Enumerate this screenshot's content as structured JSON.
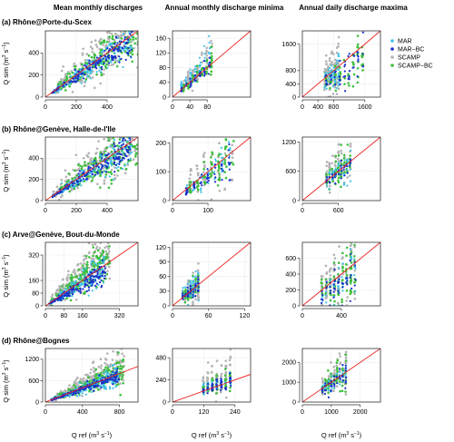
{
  "column_titles": [
    "Mean monthly discharges",
    "Annual monthly discharge minima",
    "Annual daily discharge maxima"
  ],
  "legend": [
    {
      "label": "MAR",
      "color": "#3fc1e8"
    },
    {
      "label": "MAR−BC",
      "color": "#1a2fc9"
    },
    {
      "label": "SCAMP",
      "color": "#b3b3b3"
    },
    {
      "label": "SCAMP−BC",
      "color": "#3dbf3d"
    }
  ],
  "ylabel_base": "Q sim",
  "xlabel_base": "Q ref",
  "unit_main": "(m",
  "unit_sup": "3",
  "unit_mid": " s",
  "unit_sup2": "−1",
  "unit_close": ")",
  "colors": {
    "one_to_one": "#e8221f",
    "grid": "#dcdcdc"
  },
  "chart_data": [
    {
      "type": "scatter",
      "row": 0,
      "col": 0,
      "row_title": "(a) Rhône@Porte-du-Scex",
      "xlim": [
        0,
        600
      ],
      "ylim": [
        0,
        600
      ],
      "xticks": [
        0,
        200,
        400
      ],
      "yticks": [
        0,
        200,
        400
      ],
      "seed": 11,
      "kind": "mean",
      "series": [
        {
          "name": "SCAMP",
          "x_range": [
            60,
            600
          ],
          "center": 1.15,
          "spread": 0.35,
          "n": 220
        },
        {
          "name": "SCAMP−BC",
          "x_range": [
            60,
            600
          ],
          "center": 0.98,
          "spread": 0.22,
          "n": 180
        },
        {
          "name": "MAR",
          "x_range": [
            40,
            560
          ],
          "center": 0.95,
          "spread": 0.18,
          "n": 160
        },
        {
          "name": "MAR−BC",
          "x_range": [
            40,
            560
          ],
          "center": 0.92,
          "spread": 0.12,
          "n": 160
        }
      ]
    },
    {
      "type": "scatter",
      "row": 0,
      "col": 1,
      "xlim": [
        0,
        180
      ],
      "ylim": [
        0,
        180
      ],
      "xticks": [
        0,
        40,
        80
      ],
      "yticks": [
        0,
        40,
        80,
        120,
        160
      ],
      "seed": 12,
      "kind": "min",
      "series": [
        {
          "name": "SCAMP",
          "x_range": [
            20,
            95
          ],
          "center": 1.3,
          "spread": 0.3,
          "n": 70
        },
        {
          "name": "SCAMP−BC",
          "x_range": [
            20,
            95
          ],
          "center": 1.0,
          "spread": 0.2,
          "n": 60
        },
        {
          "name": "MAR",
          "x_range": [
            15,
            90
          ],
          "center": 1.4,
          "spread": 0.35,
          "n": 60
        },
        {
          "name": "MAR−BC",
          "x_range": [
            15,
            90
          ],
          "center": 0.95,
          "spread": 0.15,
          "n": 50
        }
      ]
    },
    {
      "type": "scatter",
      "row": 0,
      "col": 2,
      "xlim": [
        0,
        2000
      ],
      "ylim": [
        0,
        2000
      ],
      "xticks": [
        0,
        400,
        800,
        1600
      ],
      "yticks": [
        0,
        400,
        800,
        1600
      ],
      "seed": 13,
      "kind": "max",
      "series": [
        {
          "name": "SCAMP",
          "x_range": [
            550,
            950
          ],
          "center": 1.0,
          "spread": 0.45,
          "n": 90
        },
        {
          "name": "SCAMP−BC",
          "x_range": [
            550,
            1600
          ],
          "center": 0.75,
          "spread": 0.25,
          "n": 70
        },
        {
          "name": "MAR",
          "x_range": [
            550,
            950
          ],
          "center": 0.9,
          "spread": 0.3,
          "n": 60
        },
        {
          "name": "MAR−BC",
          "x_range": [
            550,
            1600
          ],
          "center": 0.75,
          "spread": 0.2,
          "n": 50
        }
      ]
    },
    {
      "type": "scatter",
      "row": 1,
      "col": 0,
      "row_title": "(b) Rhône@Genève, Halle-de-l'Ile",
      "xlim": [
        0,
        600
      ],
      "ylim": [
        0,
        600
      ],
      "xticks": [
        0,
        200,
        400
      ],
      "yticks": [
        0,
        200,
        400
      ],
      "seed": 21,
      "kind": "mean",
      "series": [
        {
          "name": "SCAMP",
          "x_range": [
            50,
            600
          ],
          "center": 1.15,
          "spread": 0.35,
          "n": 220
        },
        {
          "name": "SCAMP−BC",
          "x_range": [
            50,
            600
          ],
          "center": 1.0,
          "spread": 0.25,
          "n": 180
        },
        {
          "name": "MAR",
          "x_range": [
            40,
            560
          ],
          "center": 0.95,
          "spread": 0.18,
          "n": 150
        },
        {
          "name": "MAR−BC",
          "x_range": [
            40,
            560
          ],
          "center": 0.92,
          "spread": 0.12,
          "n": 160
        }
      ]
    },
    {
      "type": "scatter",
      "row": 1,
      "col": 1,
      "xlim": [
        0,
        220
      ],
      "ylim": [
        0,
        220
      ],
      "xticks": [
        0,
        100
      ],
      "yticks": [
        0,
        100,
        200
      ],
      "seed": 22,
      "kind": "min",
      "series": [
        {
          "name": "SCAMP",
          "x_range": [
            40,
            180
          ],
          "center": 1.1,
          "spread": 0.45,
          "n": 80
        },
        {
          "name": "SCAMP−BC",
          "x_range": [
            40,
            180
          ],
          "center": 0.9,
          "spread": 0.3,
          "n": 70
        },
        {
          "name": "MAR",
          "x_range": [
            30,
            170
          ],
          "center": 0.9,
          "spread": 0.2,
          "n": 50
        },
        {
          "name": "MAR−BC",
          "x_range": [
            30,
            170
          ],
          "center": 0.85,
          "spread": 0.15,
          "n": 55
        }
      ]
    },
    {
      "type": "scatter",
      "row": 1,
      "col": 2,
      "xlim": [
        0,
        1300
      ],
      "ylim": [
        0,
        1300
      ],
      "xticks": [
        0,
        600
      ],
      "yticks": [
        0,
        600,
        1200
      ],
      "seed": 23,
      "kind": "max",
      "series": [
        {
          "name": "SCAMP",
          "x_range": [
            380,
            820
          ],
          "center": 1.25,
          "spread": 0.35,
          "n": 80
        },
        {
          "name": "SCAMP−BC",
          "x_range": [
            380,
            820
          ],
          "center": 1.0,
          "spread": 0.25,
          "n": 70
        },
        {
          "name": "MAR",
          "x_range": [
            380,
            820
          ],
          "center": 1.0,
          "spread": 0.2,
          "n": 40
        },
        {
          "name": "MAR−BC",
          "x_range": [
            380,
            820
          ],
          "center": 0.95,
          "spread": 0.15,
          "n": 40
        }
      ]
    },
    {
      "type": "scatter",
      "row": 2,
      "col": 0,
      "row_title": "(c) Arve@Genève, Bout-du-Monde",
      "xlim": [
        0,
        400
      ],
      "ylim": [
        0,
        400
      ],
      "xticks": [
        0,
        80,
        160,
        320
      ],
      "yticks": [
        0,
        80,
        160,
        320
      ],
      "seed": 31,
      "kind": "mean",
      "series": [
        {
          "name": "SCAMP",
          "x_range": [
            20,
            280
          ],
          "center": 1.35,
          "spread": 0.4,
          "n": 220
        },
        {
          "name": "SCAMP−BC",
          "x_range": [
            20,
            280
          ],
          "center": 1.1,
          "spread": 0.3,
          "n": 190
        },
        {
          "name": "MAR",
          "x_range": [
            15,
            260
          ],
          "center": 0.95,
          "spread": 0.2,
          "n": 150
        },
        {
          "name": "MAR−BC",
          "x_range": [
            15,
            260
          ],
          "center": 0.85,
          "spread": 0.15,
          "n": 160
        }
      ]
    },
    {
      "type": "scatter",
      "row": 2,
      "col": 1,
      "xlim": [
        0,
        130
      ],
      "ylim": [
        0,
        130
      ],
      "xticks": [
        0,
        60,
        120
      ],
      "yticks": [
        0,
        30,
        60,
        90,
        120
      ],
      "seed": 32,
      "kind": "min",
      "series": [
        {
          "name": "SCAMP",
          "x_range": [
            15,
            45
          ],
          "center": 1.1,
          "spread": 0.45,
          "n": 70
        },
        {
          "name": "SCAMP−BC",
          "x_range": [
            15,
            45
          ],
          "center": 1.0,
          "spread": 0.35,
          "n": 60
        },
        {
          "name": "MAR",
          "x_range": [
            15,
            45
          ],
          "center": 1.2,
          "spread": 0.4,
          "n": 60
        },
        {
          "name": "MAR−BC",
          "x_range": [
            15,
            45
          ],
          "center": 0.95,
          "spread": 0.25,
          "n": 50
        }
      ]
    },
    {
      "type": "scatter",
      "row": 2,
      "col": 2,
      "xlim": [
        0,
        800
      ],
      "ylim": [
        0,
        800
      ],
      "xticks": [
        0,
        400
      ],
      "yticks": [
        0,
        200,
        400,
        600
      ],
      "seed": 33,
      "kind": "max",
      "series": [
        {
          "name": "SCAMP",
          "x_range": [
            180,
            560
          ],
          "center": 1.05,
          "spread": 0.55,
          "n": 90
        },
        {
          "name": "SCAMP−BC",
          "x_range": [
            180,
            560
          ],
          "center": 0.9,
          "spread": 0.5,
          "n": 90
        },
        {
          "name": "MAR",
          "x_range": [
            180,
            560
          ],
          "center": 0.8,
          "spread": 0.35,
          "n": 40
        },
        {
          "name": "MAR−BC",
          "x_range": [
            180,
            560
          ],
          "center": 0.75,
          "spread": 0.3,
          "n": 50
        }
      ]
    },
    {
      "type": "scatter",
      "row": 3,
      "col": 0,
      "row_title": "(d) Rhône@Bognes",
      "xlim": [
        0,
        1000
      ],
      "ylim": [
        0,
        1500
      ],
      "xticks": [
        0,
        400,
        800
      ],
      "yticks": [
        0,
        600,
        1200
      ],
      "seed": 41,
      "kind": "mean",
      "series": [
        {
          "name": "SCAMP",
          "x_range": [
            80,
            850
          ],
          "center": 1.25,
          "spread": 0.35,
          "n": 220
        },
        {
          "name": "SCAMP−BC",
          "x_range": [
            80,
            850
          ],
          "center": 1.05,
          "spread": 0.25,
          "n": 180
        },
        {
          "name": "MAR",
          "x_range": [
            60,
            800
          ],
          "center": 0.95,
          "spread": 0.2,
          "n": 150
        },
        {
          "name": "MAR−BC",
          "x_range": [
            60,
            800
          ],
          "center": 0.92,
          "spread": 0.12,
          "n": 160
        }
      ]
    },
    {
      "type": "scatter",
      "row": 3,
      "col": 1,
      "xlim": [
        0,
        300
      ],
      "ylim": [
        0,
        580
      ],
      "xticks": [
        0,
        120,
        240
      ],
      "yticks": [
        0,
        240,
        480
      ],
      "seed": 42,
      "kind": "min",
      "series": [
        {
          "name": "SCAMP",
          "x_range": [
            110,
            230
          ],
          "center": 1.6,
          "spread": 0.6,
          "n": 80
        },
        {
          "name": "SCAMP−BC",
          "x_range": [
            110,
            230
          ],
          "center": 1.2,
          "spread": 0.3,
          "n": 70
        },
        {
          "name": "MAR",
          "x_range": [
            110,
            230
          ],
          "center": 1.1,
          "spread": 0.25,
          "n": 50
        },
        {
          "name": "MAR−BC",
          "x_range": [
            110,
            230
          ],
          "center": 1.05,
          "spread": 0.2,
          "n": 60
        }
      ]
    },
    {
      "type": "scatter",
      "row": 3,
      "col": 2,
      "xlim": [
        0,
        2700
      ],
      "ylim": [
        0,
        2700
      ],
      "xticks": [
        0,
        1000,
        2000
      ],
      "yticks": [
        0,
        1000,
        2000
      ],
      "seed": 43,
      "kind": "max",
      "series": [
        {
          "name": "SCAMP",
          "x_range": [
            650,
            1550
          ],
          "center": 1.2,
          "spread": 0.35,
          "n": 90
        },
        {
          "name": "SCAMP−BC",
          "x_range": [
            650,
            1550
          ],
          "center": 1.0,
          "spread": 0.3,
          "n": 80
        },
        {
          "name": "MAR",
          "x_range": [
            650,
            1550
          ],
          "center": 0.95,
          "spread": 0.2,
          "n": 40
        },
        {
          "name": "MAR−BC",
          "x_range": [
            650,
            1550
          ],
          "center": 0.9,
          "spread": 0.2,
          "n": 50
        }
      ]
    }
  ]
}
